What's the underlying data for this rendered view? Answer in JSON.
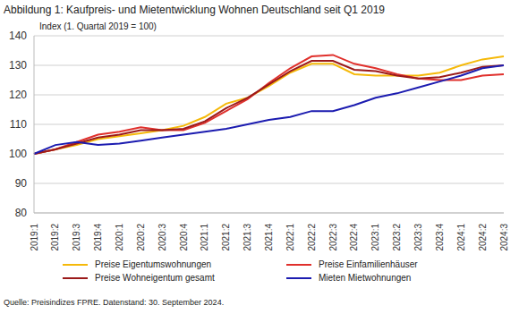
{
  "chart_data": {
    "type": "line",
    "title": "Abbildung 1: Kaufpreis- und Mietentwicklung Wohnen Deutschland seit Q1 2019",
    "subtitle": "Index (1. Quartal 2019 = 100)",
    "source": "Quelle: Preisindizes FPRE. Datenstand: 30. September 2024.",
    "categories": [
      "2019:1",
      "2019:2",
      "2019:3",
      "2019:4",
      "2020:1",
      "2020:2",
      "2020:3",
      "2020:4",
      "2021:1",
      "2021:2",
      "2021:3",
      "2021:4",
      "2022:1",
      "2022:2",
      "2022:3",
      "2022:4",
      "2023:1",
      "2023:2",
      "2023:3",
      "2023:4",
      "2024:1",
      "2024:2",
      "2024:3"
    ],
    "series": [
      {
        "name": "Preise Eigentumswohnungen",
        "color": "#f5b90a",
        "values": [
          100,
          101.5,
          103,
          105,
          106,
          107,
          108,
          109.5,
          112.5,
          117,
          119,
          123,
          127.5,
          130.5,
          130.5,
          127,
          126.5,
          126.5,
          126.5,
          127.5,
          130,
          132,
          133
        ]
      },
      {
        "name": "Preise Einfamilienhäuser",
        "color": "#e0302c",
        "values": [
          100,
          101.5,
          104,
          106.5,
          107.5,
          109,
          108,
          108,
          110.5,
          114.5,
          118.5,
          124,
          129,
          133,
          133.5,
          130.5,
          129,
          127,
          125.5,
          125,
          125,
          126.5,
          127
        ]
      },
      {
        "name": "Preise Wohneigentum gesamt",
        "color": "#9b1a1a",
        "values": [
          100,
          101.5,
          103.5,
          105.5,
          106.5,
          108,
          108,
          108.5,
          111,
          115.5,
          119,
          123.5,
          128,
          131.5,
          131.5,
          128.5,
          128,
          126.5,
          125.5,
          126,
          127.5,
          129.5,
          130
        ]
      },
      {
        "name": "Mieten Mietwohnungen",
        "color": "#1c1cb0",
        "values": [
          100,
          103,
          104,
          103,
          103.5,
          104.5,
          105.5,
          106.5,
          107.5,
          108.5,
          110,
          111.5,
          112.5,
          114.5,
          114.5,
          116.5,
          119,
          120.5,
          122.5,
          124.5,
          126.5,
          129,
          130
        ]
      }
    ],
    "ylim": [
      80,
      140
    ],
    "yticks": [
      80,
      90,
      100,
      110,
      120,
      130,
      140
    ],
    "grid": true,
    "legend": "bottom"
  }
}
